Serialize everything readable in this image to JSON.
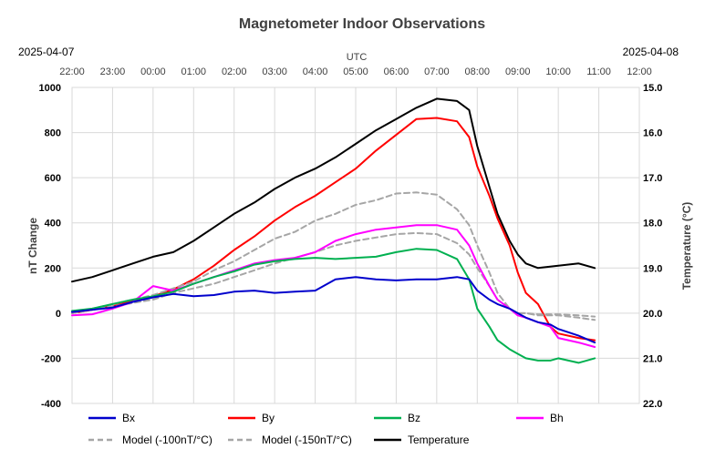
{
  "chart_data": {
    "type": "line",
    "title": "Magnetometer Indoor Observations",
    "date_left": "2025-04-07",
    "date_right": "2025-04-08",
    "x_axis_label": "UTC",
    "x_ticks": [
      "22:00",
      "23:00",
      "00:00",
      "01:00",
      "02:00",
      "03:00",
      "04:00",
      "05:00",
      "06:00",
      "07:00",
      "08:00",
      "09:00",
      "10:00",
      "11:00",
      "12:00"
    ],
    "x_range_hours": [
      0,
      14
    ],
    "ylabel": "nT Change",
    "ylim": [
      -400,
      1000
    ],
    "y_ticks": [
      "1000",
      "800",
      "600",
      "400",
      "200",
      "0",
      "-200",
      "-400"
    ],
    "y2label": "Temperature (°C)",
    "y2lim": [
      15.0,
      22.0
    ],
    "y2_ticks": [
      "15.0",
      "16.0",
      "17.0",
      "18.0",
      "19.0",
      "20.0",
      "21.0",
      "22.0"
    ],
    "x_unit": "hours since 22:00 UTC",
    "series": [
      {
        "name": "Temperature",
        "axis": "right",
        "color": "#000000",
        "dash": "",
        "x": [
          0,
          0.5,
          1,
          1.5,
          2,
          2.5,
          3,
          3.5,
          4,
          4.5,
          5,
          5.5,
          6,
          6.5,
          7,
          7.5,
          8,
          8.5,
          9,
          9.5,
          9.8,
          10,
          10.3,
          10.5,
          10.8,
          11,
          11.2,
          11.5,
          12,
          12.5,
          12.9
        ],
        "y": [
          19.3,
          19.2,
          19.05,
          18.9,
          18.75,
          18.65,
          18.4,
          18.1,
          17.8,
          17.55,
          17.25,
          17.0,
          16.8,
          16.55,
          16.25,
          15.95,
          15.7,
          15.45,
          15.25,
          15.3,
          15.5,
          16.3,
          17.2,
          17.8,
          18.4,
          18.7,
          18.9,
          19.0,
          18.95,
          18.9,
          19.0
        ]
      },
      {
        "name": "By",
        "axis": "left",
        "color": "#ff0000",
        "dash": "",
        "x": [
          0,
          0.5,
          1,
          1.5,
          2,
          2.5,
          3,
          3.5,
          4,
          4.5,
          5,
          5.5,
          6,
          6.5,
          7,
          7.5,
          8,
          8.5,
          9,
          9.5,
          9.8,
          10,
          10.3,
          10.5,
          10.8,
          11,
          11.2,
          11.5,
          11.8,
          12,
          12.5,
          12.9
        ],
        "y": [
          0,
          15,
          30,
          55,
          75,
          105,
          150,
          210,
          280,
          340,
          410,
          470,
          520,
          580,
          640,
          720,
          790,
          860,
          865,
          850,
          780,
          650,
          520,
          420,
          300,
          180,
          90,
          40,
          -60,
          -90,
          -110,
          -120
        ]
      },
      {
        "name": "Model (-150nT/°C)",
        "axis": "left",
        "color": "#a6a6a6",
        "dash": "6,4",
        "x": [
          0,
          0.5,
          1,
          1.5,
          2,
          2.5,
          3,
          3.5,
          4,
          4.5,
          5,
          5.5,
          6,
          6.5,
          7,
          7.5,
          8,
          8.5,
          9,
          9.5,
          9.8,
          10,
          10.3,
          10.5,
          10.8,
          11,
          11.2,
          11.5,
          12,
          12.5,
          12.9
        ],
        "y": [
          0,
          20,
          40,
          60,
          80,
          110,
          140,
          190,
          230,
          280,
          330,
          360,
          410,
          440,
          480,
          500,
          530,
          535,
          525,
          460,
          390,
          300,
          180,
          90,
          20,
          0,
          0,
          -10,
          -10,
          -20,
          -30
        ]
      },
      {
        "name": "Model (-100nT/°C)",
        "axis": "left",
        "color": "#a6a6a6",
        "dash": "6,4",
        "x": [
          0,
          0.5,
          1,
          1.5,
          2,
          2.5,
          3,
          3.5,
          4,
          4.5,
          5,
          5.5,
          6,
          6.5,
          7,
          7.5,
          8,
          8.5,
          9,
          9.5,
          9.8,
          10,
          10.3,
          10.5,
          10.8,
          11,
          11.2,
          11.5,
          12,
          12.5,
          12.9
        ],
        "y": [
          0,
          15,
          30,
          45,
          60,
          90,
          110,
          130,
          160,
          190,
          220,
          245,
          270,
          300,
          320,
          335,
          350,
          355,
          350,
          310,
          260,
          200,
          120,
          60,
          20,
          0,
          0,
          -5,
          -5,
          -10,
          -15
        ]
      },
      {
        "name": "Bh",
        "axis": "left",
        "color": "#ff00ff",
        "dash": "",
        "x": [
          0,
          0.5,
          1,
          1.5,
          2,
          2.5,
          3,
          3.5,
          4,
          4.5,
          5,
          5.5,
          6,
          6.5,
          7,
          7.5,
          8,
          8.5,
          9,
          9.5,
          9.8,
          10,
          10.3,
          10.5,
          10.8,
          11,
          11.2,
          11.5,
          11.8,
          12,
          12.5,
          12.9
        ],
        "y": [
          -10,
          -5,
          20,
          50,
          120,
          100,
          130,
          160,
          190,
          220,
          235,
          245,
          270,
          320,
          350,
          370,
          380,
          390,
          390,
          370,
          300,
          220,
          120,
          60,
          20,
          -10,
          -20,
          -40,
          -60,
          -110,
          -130,
          -150
        ]
      },
      {
        "name": "Bz",
        "axis": "left",
        "color": "#00b050",
        "dash": "",
        "x": [
          0,
          0.5,
          1,
          1.5,
          2,
          2.5,
          3,
          3.5,
          4,
          4.5,
          5,
          5.5,
          6,
          6.5,
          7,
          7.5,
          8,
          8.5,
          9,
          9.5,
          9.8,
          10,
          10.3,
          10.5,
          10.8,
          11,
          11.2,
          11.5,
          11.8,
          12,
          12.5,
          12.9
        ],
        "y": [
          10,
          20,
          40,
          60,
          75,
          95,
          130,
          160,
          185,
          215,
          230,
          240,
          245,
          240,
          245,
          250,
          270,
          285,
          280,
          240,
          150,
          20,
          -60,
          -120,
          -160,
          -180,
          -200,
          -210,
          -210,
          -200,
          -220,
          -200
        ]
      },
      {
        "name": "Bx",
        "axis": "left",
        "color": "#0000cc",
        "dash": "",
        "x": [
          0,
          0.5,
          1,
          1.5,
          2,
          2.5,
          3,
          3.5,
          4,
          4.5,
          5,
          5.5,
          6,
          6.5,
          7,
          7.5,
          8,
          8.5,
          9,
          9.5,
          9.8,
          10,
          10.3,
          10.5,
          10.8,
          11,
          11.2,
          11.5,
          11.8,
          12,
          12.5,
          12.9
        ],
        "y": [
          5,
          15,
          25,
          50,
          70,
          85,
          75,
          80,
          95,
          100,
          90,
          95,
          100,
          150,
          160,
          150,
          145,
          150,
          150,
          160,
          150,
          100,
          60,
          40,
          20,
          0,
          -20,
          -40,
          -50,
          -70,
          -100,
          -130
        ]
      }
    ],
    "legend": [
      {
        "name": "Bx",
        "color": "#0000cc",
        "dash": ""
      },
      {
        "name": "By",
        "color": "#ff0000",
        "dash": ""
      },
      {
        "name": "Bz",
        "color": "#00b050",
        "dash": ""
      },
      {
        "name": "Bh",
        "color": "#ff00ff",
        "dash": ""
      },
      {
        "name": "Model (-100nT/°C)",
        "color": "#a6a6a6",
        "dash": "6,4"
      },
      {
        "name": "Model (-150nT/°C)",
        "color": "#a6a6a6",
        "dash": "6,4"
      },
      {
        "name": "Temperature",
        "color": "#000000",
        "dash": ""
      }
    ]
  }
}
